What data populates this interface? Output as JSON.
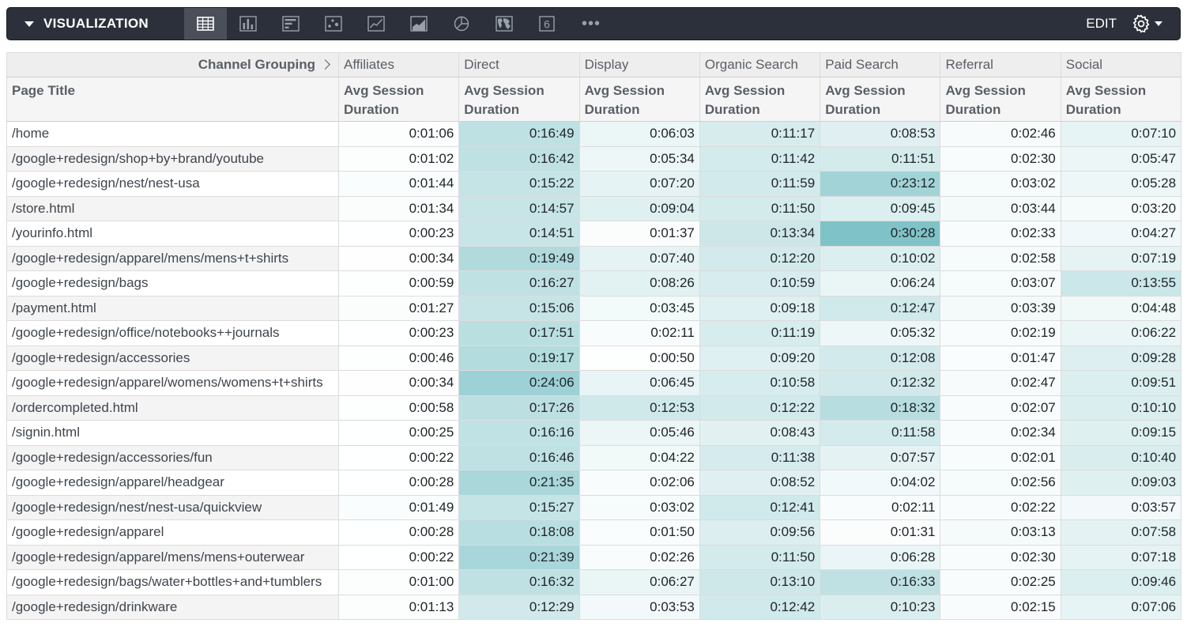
{
  "toolbar": {
    "title": "VISUALIZATION",
    "edit_label": "EDIT",
    "more_label": "•••",
    "colors": {
      "background": "#2c303a",
      "active": "#4a4f5a",
      "icon": "#9aa0aa",
      "text": "#ffffff"
    },
    "vis_types": [
      {
        "icon": "table-icon",
        "active": true
      },
      {
        "icon": "column-chart-icon",
        "active": false
      },
      {
        "icon": "bar-chart-icon",
        "active": false
      },
      {
        "icon": "scatter-chart-icon",
        "active": false
      },
      {
        "icon": "line-chart-icon",
        "active": false
      },
      {
        "icon": "area-chart-icon",
        "active": false
      },
      {
        "icon": "pie-chart-icon",
        "active": false
      },
      {
        "icon": "map-icon",
        "active": false
      },
      {
        "icon": "single-value-icon",
        "active": false,
        "label": "6"
      }
    ]
  },
  "table": {
    "pivot_label": "Channel Grouping",
    "row_header": "Page Title",
    "measure_label": "Avg Session Duration",
    "heat_color": "#7fc3c8",
    "columns": [
      "Affiliates",
      "Direct",
      "Display",
      "Organic Search",
      "Paid Search",
      "Referral",
      "Social"
    ],
    "rows": [
      {
        "title": "/home",
        "values": [
          "0:01:06",
          "0:16:49",
          "0:06:03",
          "0:11:17",
          "0:08:53",
          "0:02:46",
          "0:07:10"
        ]
      },
      {
        "title": "/google+redesign/shop+by+brand/youtube",
        "values": [
          "0:01:02",
          "0:16:42",
          "0:05:34",
          "0:11:42",
          "0:11:51",
          "0:02:30",
          "0:05:47"
        ]
      },
      {
        "title": "/google+redesign/nest/nest-usa",
        "values": [
          "0:01:44",
          "0:15:22",
          "0:07:20",
          "0:11:59",
          "0:23:12",
          "0:03:02",
          "0:05:28"
        ]
      },
      {
        "title": "/store.html",
        "values": [
          "0:01:34",
          "0:14:57",
          "0:09:04",
          "0:11:50",
          "0:09:45",
          "0:03:44",
          "0:03:20"
        ]
      },
      {
        "title": "/yourinfo.html",
        "values": [
          "0:00:23",
          "0:14:51",
          "0:01:37",
          "0:13:34",
          "0:30:28",
          "0:02:33",
          "0:04:27"
        ]
      },
      {
        "title": "/google+redesign/apparel/mens/mens+t+shirts",
        "values": [
          "0:00:34",
          "0:19:49",
          "0:07:40",
          "0:12:20",
          "0:10:02",
          "0:02:58",
          "0:07:19"
        ]
      },
      {
        "title": "/google+redesign/bags",
        "values": [
          "0:00:59",
          "0:16:27",
          "0:08:26",
          "0:10:59",
          "0:06:24",
          "0:03:07",
          "0:13:55"
        ]
      },
      {
        "title": "/payment.html",
        "values": [
          "0:01:27",
          "0:15:06",
          "0:03:45",
          "0:09:18",
          "0:12:47",
          "0:03:39",
          "0:04:48"
        ]
      },
      {
        "title": "/google+redesign/office/notebooks++journals",
        "values": [
          "0:00:23",
          "0:17:51",
          "0:02:11",
          "0:11:19",
          "0:05:32",
          "0:02:19",
          "0:06:22"
        ]
      },
      {
        "title": "/google+redesign/accessories",
        "values": [
          "0:00:46",
          "0:19:17",
          "0:00:50",
          "0:09:20",
          "0:12:08",
          "0:01:47",
          "0:09:28"
        ]
      },
      {
        "title": "/google+redesign/apparel/womens/womens+t+shirts",
        "values": [
          "0:00:34",
          "0:24:06",
          "0:06:45",
          "0:10:58",
          "0:12:32",
          "0:02:47",
          "0:09:51"
        ]
      },
      {
        "title": "/ordercompleted.html",
        "values": [
          "0:00:58",
          "0:17:26",
          "0:12:53",
          "0:12:22",
          "0:18:32",
          "0:02:07",
          "0:10:10"
        ]
      },
      {
        "title": "/signin.html",
        "values": [
          "0:00:25",
          "0:16:16",
          "0:05:46",
          "0:08:43",
          "0:11:58",
          "0:02:34",
          "0:09:15"
        ]
      },
      {
        "title": "/google+redesign/accessories/fun",
        "values": [
          "0:00:22",
          "0:16:46",
          "0:04:22",
          "0:11:38",
          "0:07:57",
          "0:02:01",
          "0:10:40"
        ]
      },
      {
        "title": "/google+redesign/apparel/headgear",
        "values": [
          "0:00:28",
          "0:21:35",
          "0:02:06",
          "0:08:52",
          "0:04:02",
          "0:02:56",
          "0:09:03"
        ]
      },
      {
        "title": "/google+redesign/nest/nest-usa/quickview",
        "values": [
          "0:01:49",
          "0:15:27",
          "0:03:02",
          "0:12:41",
          "0:02:11",
          "0:02:22",
          "0:03:57"
        ]
      },
      {
        "title": "/google+redesign/apparel",
        "values": [
          "0:00:28",
          "0:18:08",
          "0:01:50",
          "0:09:56",
          "0:01:31",
          "0:03:13",
          "0:07:58"
        ]
      },
      {
        "title": "/google+redesign/apparel/mens/mens+outerwear",
        "values": [
          "0:00:22",
          "0:21:39",
          "0:02:26",
          "0:11:50",
          "0:06:28",
          "0:02:30",
          "0:07:18"
        ]
      },
      {
        "title": "/google+redesign/bags/water+bottles+and+tumblers",
        "values": [
          "0:01:00",
          "0:16:32",
          "0:06:27",
          "0:13:10",
          "0:16:33",
          "0:02:25",
          "0:09:46"
        ]
      },
      {
        "title": "/google+redesign/drinkware",
        "values": [
          "0:01:13",
          "0:12:29",
          "0:03:53",
          "0:12:42",
          "0:10:23",
          "0:02:15",
          "0:07:06"
        ]
      }
    ]
  }
}
